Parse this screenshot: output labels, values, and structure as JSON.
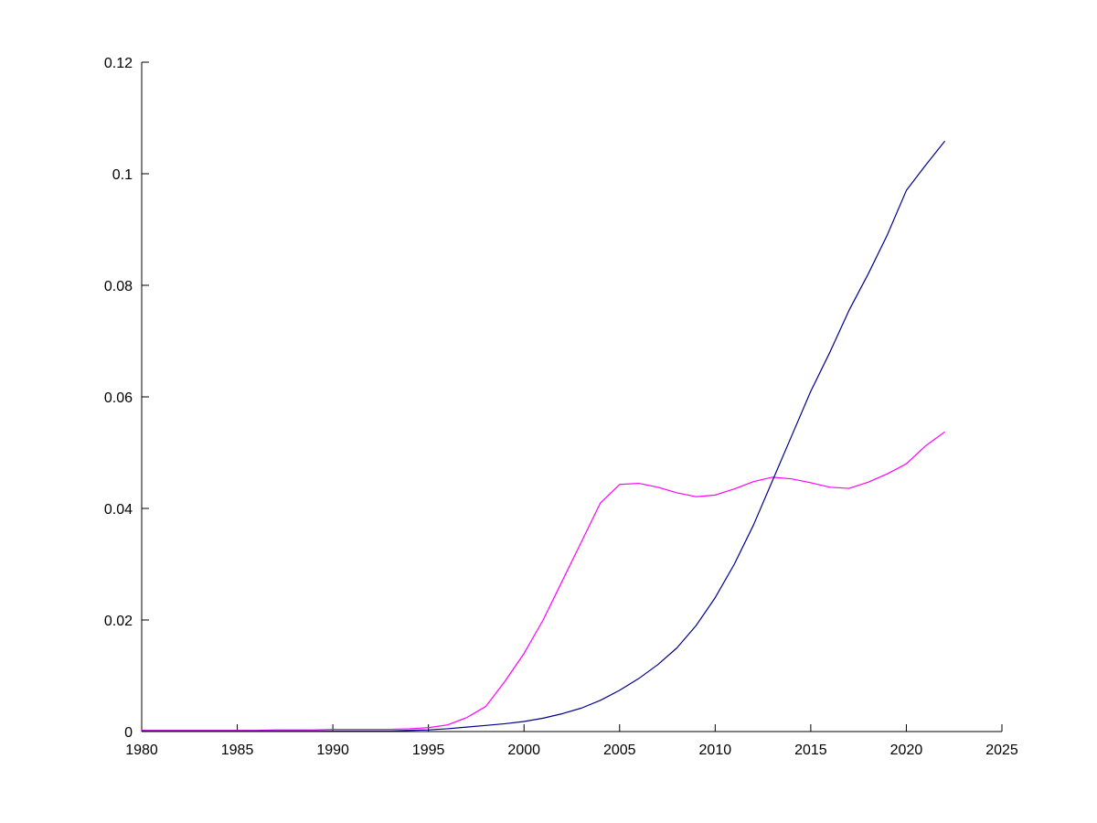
{
  "figure": {
    "background": "#ffffff",
    "axes_color": "#000000"
  },
  "chart_data": {
    "type": "line",
    "title": "",
    "xlabel": "",
    "ylabel": "",
    "grid": false,
    "legend_position": "none",
    "xlim": [
      1980,
      2025
    ],
    "ylim": [
      0,
      0.12
    ],
    "x_ticks": [
      1980,
      1985,
      1990,
      1995,
      2000,
      2005,
      2010,
      2015,
      2020,
      2025
    ],
    "x_tick_labels": [
      "1980",
      "1985",
      "1990",
      "1995",
      "2000",
      "2005",
      "2010",
      "2015",
      "2020",
      "2025"
    ],
    "y_ticks": [
      0,
      0.02,
      0.04,
      0.06,
      0.08,
      0.1,
      0.12
    ],
    "y_tick_labels": [
      "0",
      "0.02",
      "0.04",
      "0.06",
      "0.08",
      "0.1",
      "0.12"
    ],
    "x": [
      1980,
      1981,
      1982,
      1983,
      1984,
      1985,
      1986,
      1987,
      1988,
      1989,
      1990,
      1991,
      1992,
      1993,
      1994,
      1995,
      1996,
      1997,
      1998,
      1999,
      2000,
      2001,
      2002,
      2003,
      2004,
      2005,
      2006,
      2007,
      2008,
      2009,
      2010,
      2011,
      2012,
      2013,
      2014,
      2015,
      2016,
      2017,
      2018,
      2019,
      2020,
      2021,
      2022
    ],
    "series": [
      {
        "name": "magenta-series",
        "color": "#ff00ff",
        "values": [
          0.0002,
          0.0002,
          0.0002,
          0.0002,
          0.0002,
          0.0002,
          0.0002,
          0.0003,
          0.0003,
          0.0003,
          0.0004,
          0.0004,
          0.0004,
          0.0004,
          0.0005,
          0.0007,
          0.0012,
          0.0025,
          0.0045,
          0.009,
          0.014,
          0.02,
          0.027,
          0.034,
          0.041,
          0.0443,
          0.0445,
          0.0438,
          0.0428,
          0.0421,
          0.0424,
          0.0435,
          0.0448,
          0.0456,
          0.0453,
          0.0446,
          0.0438,
          0.0436,
          0.0447,
          0.0462,
          0.048,
          0.0512,
          0.0537
        ]
      },
      {
        "name": "dark-blue-series",
        "color": "#00008b",
        "values": [
          0.0001,
          0.0001,
          0.0001,
          0.0001,
          0.0001,
          0.0001,
          0.0001,
          0.0001,
          0.0001,
          0.0001,
          0.0001,
          0.0001,
          0.0001,
          0.0001,
          0.0002,
          0.0003,
          0.0005,
          0.0008,
          0.0011,
          0.0014,
          0.0018,
          0.0024,
          0.0032,
          0.0042,
          0.0056,
          0.0074,
          0.0095,
          0.012,
          0.015,
          0.019,
          0.024,
          0.03,
          0.037,
          0.045,
          0.053,
          0.061,
          0.068,
          0.0755,
          0.082,
          0.089,
          0.097,
          0.1015,
          0.1058
        ]
      }
    ]
  }
}
